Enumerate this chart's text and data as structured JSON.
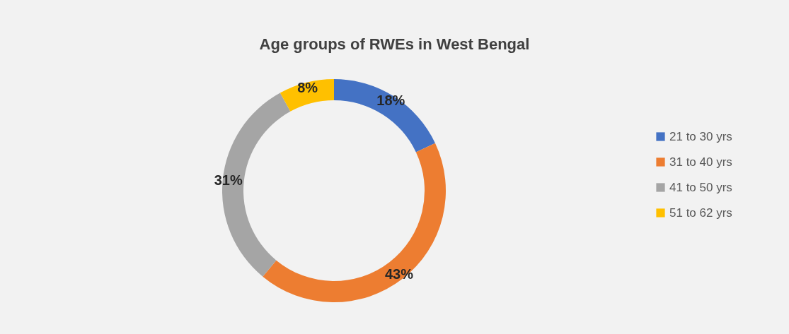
{
  "chart_data": {
    "type": "donut",
    "title": "Age groups of RWEs in West Bengal",
    "categories": [
      "21 to 30 yrs",
      "31 to 40 yrs",
      "41 to 50 yrs",
      "51 to 62 yrs"
    ],
    "values": [
      18,
      43,
      31,
      8
    ],
    "value_labels": [
      "18%",
      "43%",
      "31%",
      "8%"
    ],
    "colors": [
      "#4472c4",
      "#ed7d31",
      "#a5a5a5",
      "#ffc000"
    ],
    "legend": "right"
  }
}
